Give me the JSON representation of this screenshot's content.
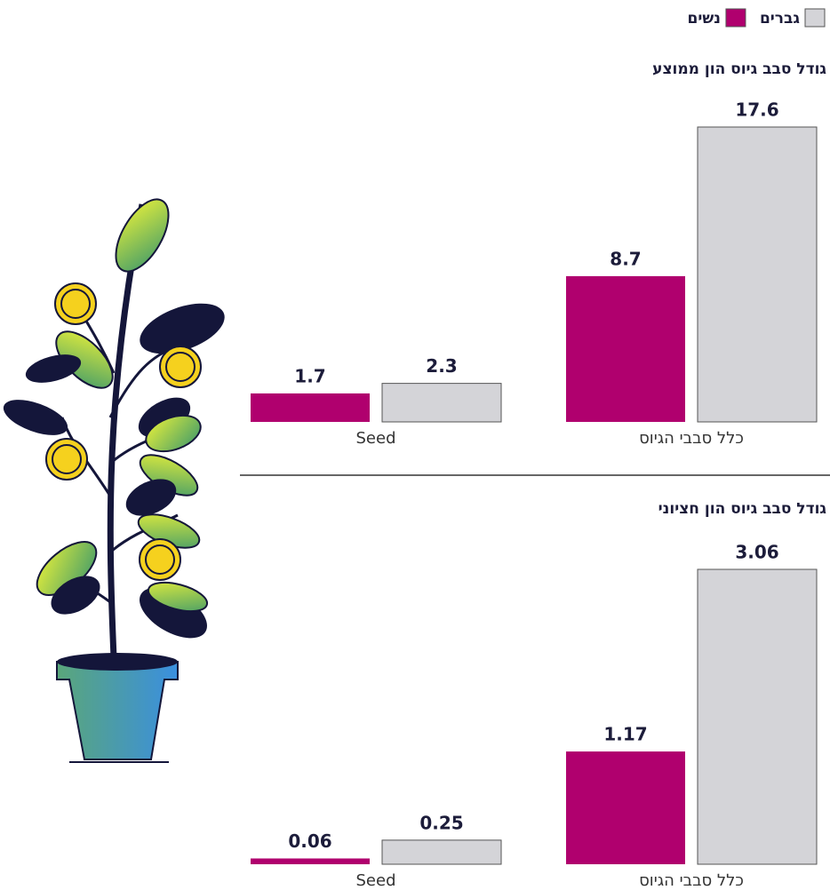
{
  "chart_data": [
    {
      "type": "bar",
      "title": "גודל סבב גיוס הון ממוצע",
      "categories": [
        "כלל סבבי הגיוס",
        "Seed"
      ],
      "series": [
        {
          "name": "נשים",
          "color": "#b0006e",
          "values": [
            8.7,
            1.7
          ]
        },
        {
          "name": "גברים",
          "color": "#d4d4d8",
          "values": [
            17.6,
            2.3
          ]
        }
      ]
    },
    {
      "type": "bar",
      "title": "גודל סבב גיוס הון חציוני",
      "categories": [
        "כלל סבבי הגיוס",
        "Seed"
      ],
      "series": [
        {
          "color": "#b0006e",
          "values": [
            1.17,
            0.06
          ]
        },
        {
          "color": "#d4d4d8",
          "values": [
            3.06,
            0.25
          ]
        }
      ]
    }
  ]
}
